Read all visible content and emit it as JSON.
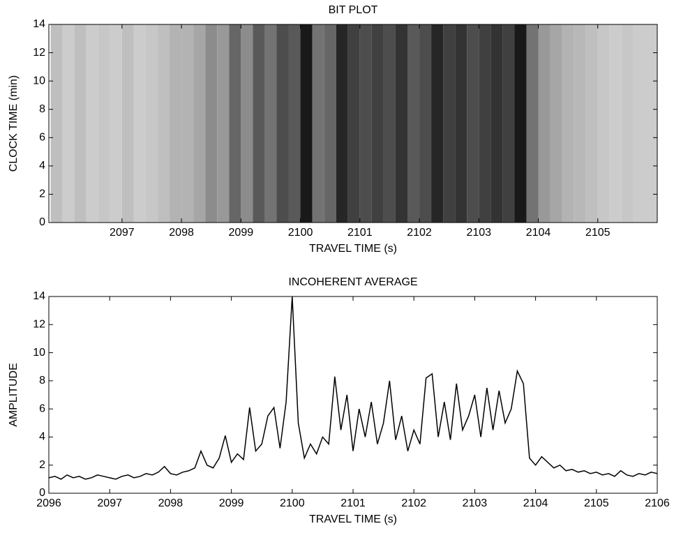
{
  "chart_data": [
    {
      "type": "heatmap",
      "title": "BIT PLOT",
      "xlabel": "TRAVEL TIME (s)",
      "ylabel": "CLOCK TIME (min)",
      "x": [
        2095.9,
        2096.1,
        2096.3,
        2096.5,
        2096.7,
        2096.9,
        2097.1,
        2097.3,
        2097.5,
        2097.7,
        2097.9,
        2098.1,
        2098.3,
        2098.5,
        2098.7,
        2098.9,
        2099.1,
        2099.3,
        2099.5,
        2099.7,
        2099.9,
        2100.1,
        2100.3,
        2100.5,
        2100.7,
        2100.9,
        2101.1,
        2101.3,
        2101.5,
        2101.7,
        2101.9,
        2102.1,
        2102.3,
        2102.5,
        2102.7,
        2102.9,
        2103.1,
        2103.3,
        2103.5,
        2103.7,
        2103.9,
        2104.1,
        2104.3,
        2104.5,
        2104.7,
        2104.9,
        2105.1,
        2105.3,
        2105.5,
        2105.7,
        2105.9
      ],
      "values": [
        0.25,
        0.2,
        0.25,
        0.2,
        0.22,
        0.2,
        0.25,
        0.2,
        0.22,
        0.25,
        0.3,
        0.3,
        0.35,
        0.45,
        0.4,
        0.6,
        0.45,
        0.65,
        0.55,
        0.7,
        0.65,
        0.9,
        0.55,
        0.6,
        0.85,
        0.75,
        0.7,
        0.75,
        0.7,
        0.8,
        0.65,
        0.7,
        0.85,
        0.75,
        0.8,
        0.7,
        0.75,
        0.8,
        0.75,
        0.9,
        0.55,
        0.4,
        0.35,
        0.3,
        0.28,
        0.25,
        0.22,
        0.2,
        0.22,
        0.2,
        0.2
      ],
      "xlim": [
        2095.77,
        2106.0
      ],
      "xticks": [
        2097,
        2098,
        2099,
        2100,
        2101,
        2102,
        2103,
        2104,
        2105
      ],
      "ylim": [
        0,
        14
      ],
      "yticks": [
        0,
        2,
        4,
        6,
        8,
        10,
        12,
        14
      ]
    },
    {
      "type": "line",
      "title": "INCOHERENT AVERAGE",
      "xlabel": "TRAVEL TIME (s)",
      "ylabel": "AMPLITUDE",
      "color": "#000000",
      "x": [
        2096.0,
        2096.1,
        2096.2,
        2096.3,
        2096.4,
        2096.5,
        2096.6,
        2096.7,
        2096.8,
        2096.9,
        2097.0,
        2097.1,
        2097.2,
        2097.3,
        2097.4,
        2097.5,
        2097.6,
        2097.7,
        2097.8,
        2097.9,
        2098.0,
        2098.1,
        2098.2,
        2098.3,
        2098.4,
        2098.5,
        2098.6,
        2098.7,
        2098.8,
        2098.9,
        2099.0,
        2099.1,
        2099.2,
        2099.3,
        2099.4,
        2099.5,
        2099.6,
        2099.7,
        2099.8,
        2099.9,
        2100.0,
        2100.1,
        2100.2,
        2100.3,
        2100.4,
        2100.5,
        2100.6,
        2100.7,
        2100.8,
        2100.9,
        2101.0,
        2101.1,
        2101.2,
        2101.3,
        2101.4,
        2101.5,
        2101.6,
        2101.7,
        2101.8,
        2101.9,
        2102.0,
        2102.1,
        2102.2,
        2102.3,
        2102.4,
        2102.5,
        2102.6,
        2102.7,
        2102.8,
        2102.9,
        2103.0,
        2103.1,
        2103.2,
        2103.3,
        2103.4,
        2103.5,
        2103.6,
        2103.7,
        2103.8,
        2103.9,
        2104.0,
        2104.1,
        2104.2,
        2104.3,
        2104.4,
        2104.5,
        2104.6,
        2104.7,
        2104.8,
        2104.9,
        2105.0,
        2105.1,
        2105.2,
        2105.3,
        2105.4,
        2105.5,
        2105.6,
        2105.7,
        2105.8,
        2105.9,
        2106.0
      ],
      "values": [
        1.1,
        1.2,
        1.0,
        1.3,
        1.1,
        1.2,
        1.0,
        1.1,
        1.3,
        1.2,
        1.1,
        1.0,
        1.2,
        1.3,
        1.1,
        1.2,
        1.4,
        1.3,
        1.5,
        1.9,
        1.4,
        1.3,
        1.5,
        1.6,
        1.8,
        3.0,
        2.0,
        1.8,
        2.5,
        4.1,
        2.2,
        2.8,
        2.4,
        6.1,
        3.0,
        3.5,
        5.5,
        6.1,
        3.2,
        6.5,
        14.0,
        5.0,
        2.5,
        3.5,
        2.8,
        4.0,
        3.5,
        8.3,
        4.5,
        7.0,
        3.0,
        6.0,
        4.0,
        6.5,
        3.5,
        5.0,
        8.0,
        3.8,
        5.5,
        3.0,
        4.5,
        3.5,
        8.2,
        8.5,
        4.0,
        6.5,
        3.8,
        7.8,
        4.5,
        5.5,
        7.0,
        4.0,
        7.5,
        4.5,
        7.3,
        5.0,
        6.0,
        8.7,
        7.8,
        2.5,
        2.0,
        2.6,
        2.2,
        1.8,
        2.0,
        1.6,
        1.7,
        1.5,
        1.6,
        1.4,
        1.5,
        1.3,
        1.4,
        1.2,
        1.6,
        1.3,
        1.2,
        1.4,
        1.3,
        1.5,
        1.4
      ],
      "xlim": [
        2096,
        2106
      ],
      "xticks": [
        2096,
        2097,
        2098,
        2099,
        2100,
        2101,
        2102,
        2103,
        2104,
        2105,
        2106
      ],
      "ylim": [
        0,
        14
      ],
      "yticks": [
        0,
        2,
        4,
        6,
        8,
        10,
        12,
        14
      ]
    }
  ]
}
